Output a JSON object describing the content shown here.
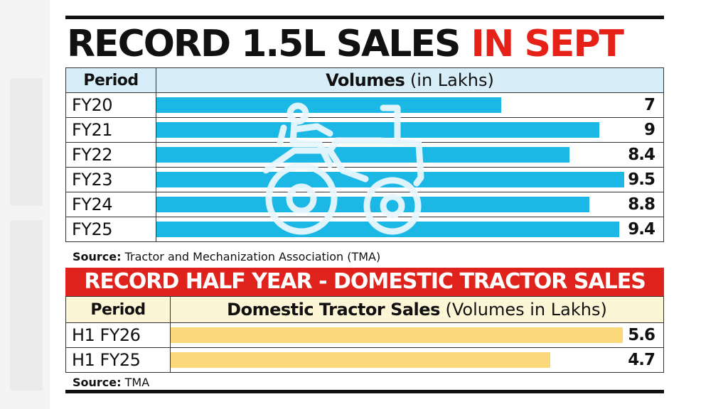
{
  "headline": {
    "part1": "RECORD 1.5L SALES ",
    "part2": "IN SEPT"
  },
  "chart_data": [
    {
      "type": "bar",
      "orientation": "horizontal",
      "header_period": "Period",
      "header_volumes_bold": "Volumes",
      "header_volumes_unit": " (in Lakhs)",
      "categories": [
        "FY20",
        "FY21",
        "FY22",
        "FY23",
        "FY24",
        "FY25"
      ],
      "values": [
        7,
        9,
        8.4,
        9.5,
        8.8,
        9.4
      ],
      "value_labels": [
        "7",
        "9",
        "8.4",
        "9.5",
        "8.8",
        "9.4"
      ],
      "xlim": [
        0,
        10.3
      ],
      "bar_color": "#1cb8e5",
      "source_label": "Source:",
      "source_text": " Tractor and Mechanization Association (TMA)"
    },
    {
      "type": "bar",
      "orientation": "horizontal",
      "title": "RECORD HALF YEAR - DOMESTIC TRACTOR SALES",
      "header_period": "Period",
      "header_volumes_bold": "Domestic Tractor Sales",
      "header_volumes_unit": " (Volumes in Lakhs)",
      "categories": [
        "H1 FY26",
        "H1 FY25"
      ],
      "values": [
        5.6,
        4.7
      ],
      "value_labels": [
        "5.6",
        "4.7"
      ],
      "xlim": [
        0,
        6.1
      ],
      "bar_color": "#fbd97a",
      "source_label": "Source:",
      "source_text": " TMA"
    }
  ],
  "colors": {
    "accent_red": "#e62117",
    "banner_red": "#e0221c",
    "header_blue": "#d7eef9",
    "header_yellow": "#fdf6d6"
  },
  "icons": {
    "watermark": "tractor-icon"
  }
}
